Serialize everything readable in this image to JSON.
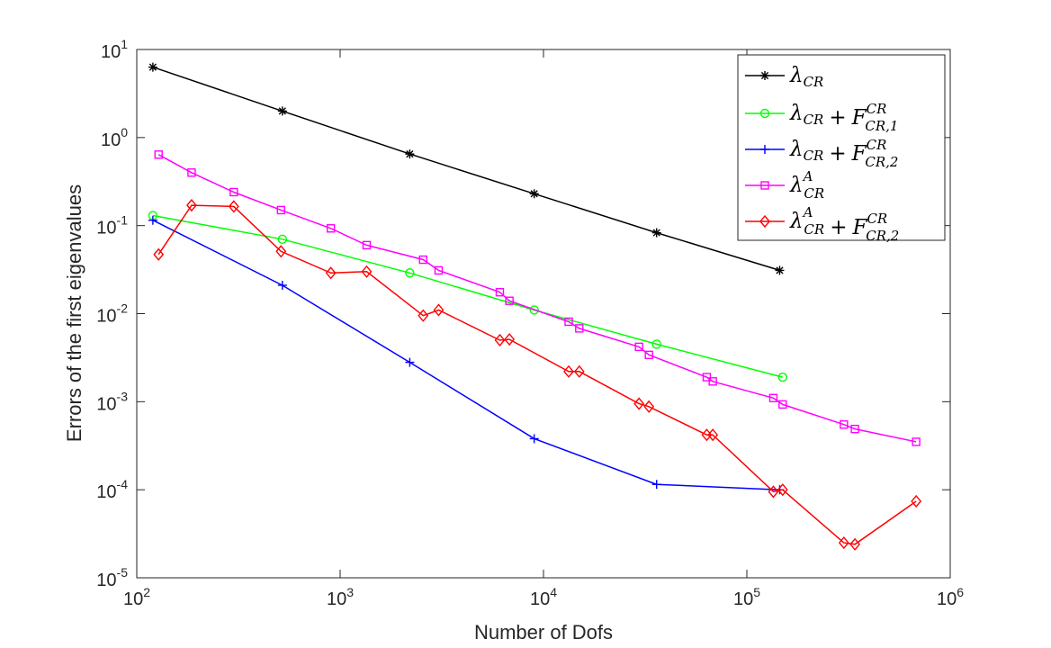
{
  "chart_data": {
    "type": "line",
    "xscale": "log",
    "yscale": "log",
    "xlim": [
      100,
      1000000
    ],
    "ylim": [
      1e-05,
      10
    ],
    "xlabel": "Number of Dofs",
    "ylabel": "Errors of the first eigenvalues",
    "legend_position": "top-right",
    "x_ticks": [
      {
        "base": "10",
        "exp": "2"
      },
      {
        "base": "10",
        "exp": "3"
      },
      {
        "base": "10",
        "exp": "4"
      },
      {
        "base": "10",
        "exp": "5"
      },
      {
        "base": "10",
        "exp": "6"
      }
    ],
    "y_ticks": [
      {
        "base": "10",
        "exp": "-5"
      },
      {
        "base": "10",
        "exp": "-4"
      },
      {
        "base": "10",
        "exp": "-3"
      },
      {
        "base": "10",
        "exp": "-2"
      },
      {
        "base": "10",
        "exp": "-1"
      },
      {
        "base": "10",
        "exp": "0"
      },
      {
        "base": "10",
        "exp": "1"
      }
    ],
    "series": [
      {
        "name": "λ_CR",
        "legend": {
          "main": "λ",
          "sub": "CR",
          "sup": "",
          "plus": "",
          "F": "",
          "Fsub": "",
          "Fsup": ""
        },
        "color": "#000000",
        "marker": "asterisk",
        "x": [
          120,
          520,
          2200,
          9000,
          36000,
          145000
        ],
        "y": [
          6.3,
          2.0,
          0.65,
          0.23,
          0.083,
          0.031
        ]
      },
      {
        "name": "λ_CR + F^CR_CR,1",
        "legend": {
          "main": "λ",
          "sub": "CR",
          "sup": "",
          "plus": "+",
          "F": "F",
          "Fsub": "CR,1",
          "Fsup": "CR"
        },
        "color": "#00ff00",
        "marker": "circle",
        "x": [
          120,
          520,
          2200,
          9000,
          36000,
          150000
        ],
        "y": [
          0.13,
          0.07,
          0.029,
          0.011,
          0.0045,
          0.0019
        ]
      },
      {
        "name": "λ_CR + F^CR_CR,2",
        "legend": {
          "main": "λ",
          "sub": "CR",
          "sup": "",
          "plus": "+",
          "F": "F",
          "Fsub": "CR,2",
          "Fsup": "CR"
        },
        "color": "#0000ff",
        "marker": "plus",
        "x": [
          120,
          520,
          2200,
          9000,
          36000,
          145000
        ],
        "y": [
          0.115,
          0.021,
          0.0028,
          0.00038,
          0.000115,
          0.0001
        ]
      },
      {
        "name": "λ^A_CR",
        "legend": {
          "main": "λ",
          "sub": "CR",
          "sup": "A",
          "plus": "",
          "F": "",
          "Fsub": "",
          "Fsup": ""
        },
        "color": "#ff00ff",
        "marker": "square",
        "x": [
          128,
          186,
          300,
          512,
          900,
          1350,
          2560,
          3050,
          6100,
          6800,
          13300,
          15000,
          29500,
          33000,
          63500,
          68000,
          135000,
          150000,
          300000,
          340000,
          680000
        ],
        "y": [
          0.64,
          0.4,
          0.24,
          0.15,
          0.093,
          0.06,
          0.041,
          0.031,
          0.0175,
          0.014,
          0.0081,
          0.0068,
          0.0042,
          0.0034,
          0.0019,
          0.0017,
          0.0011,
          0.00093,
          0.00055,
          0.00049,
          0.00035
        ]
      },
      {
        "name": "λ^A_CR + F^CR_CR,2",
        "legend": {
          "main": "λ",
          "sub": "CR",
          "sup": "A",
          "plus": "+",
          "F": "F",
          "Fsub": "CR,2",
          "Fsup": "CR"
        },
        "color": "#ff0000",
        "marker": "diamond",
        "x": [
          128,
          186,
          300,
          512,
          900,
          1350,
          2560,
          3050,
          6100,
          6800,
          13300,
          15000,
          29500,
          33000,
          63500,
          68000,
          135000,
          150000,
          300000,
          340000,
          680000
        ],
        "y": [
          0.047,
          0.17,
          0.165,
          0.051,
          0.029,
          0.03,
          0.0095,
          0.011,
          0.005,
          0.0051,
          0.0022,
          0.0022,
          0.00095,
          0.00088,
          0.00042,
          0.00042,
          9.5e-05,
          0.0001,
          2.5e-05,
          2.4e-05,
          7.4e-05
        ]
      }
    ]
  }
}
